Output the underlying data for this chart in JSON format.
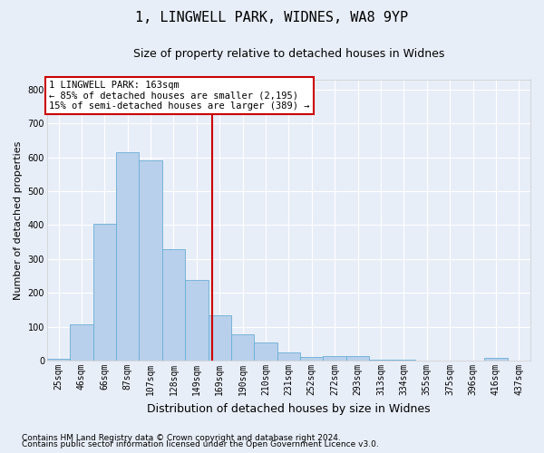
{
  "title": "1, LINGWELL PARK, WIDNES, WA8 9YP",
  "subtitle": "Size of property relative to detached houses in Widnes",
  "xlabel": "Distribution of detached houses by size in Widnes",
  "ylabel": "Number of detached properties",
  "footer_line1": "Contains HM Land Registry data © Crown copyright and database right 2024.",
  "footer_line2": "Contains public sector information licensed under the Open Government Licence v3.0.",
  "bar_labels": [
    "25sqm",
    "46sqm",
    "66sqm",
    "87sqm",
    "107sqm",
    "128sqm",
    "149sqm",
    "169sqm",
    "190sqm",
    "210sqm",
    "231sqm",
    "252sqm",
    "272sqm",
    "293sqm",
    "313sqm",
    "334sqm",
    "355sqm",
    "375sqm",
    "396sqm",
    "416sqm",
    "437sqm"
  ],
  "bar_values": [
    7,
    108,
    405,
    615,
    592,
    328,
    237,
    133,
    78,
    55,
    25,
    12,
    15,
    15,
    4,
    4,
    0,
    0,
    0,
    8,
    0
  ],
  "bar_color": "#b8d0eb",
  "bar_edge_color": "#6aadd5",
  "background_color": "#e8eef8",
  "grid_color": "#ffffff",
  "vline_x": 6.67,
  "vline_color": "#cc0000",
  "annotation_text": "1 LINGWELL PARK: 163sqm\n← 85% of detached houses are smaller (2,195)\n15% of semi-detached houses are larger (389) →",
  "annotation_box_edgecolor": "#cc0000",
  "ylim": [
    0,
    830
  ],
  "yticks": [
    0,
    100,
    200,
    300,
    400,
    500,
    600,
    700,
    800
  ],
  "title_fontsize": 11,
  "subtitle_fontsize": 9,
  "ylabel_fontsize": 8,
  "xlabel_fontsize": 9,
  "tick_fontsize": 7,
  "footer_fontsize": 6.5,
  "annot_fontsize": 7.5
}
